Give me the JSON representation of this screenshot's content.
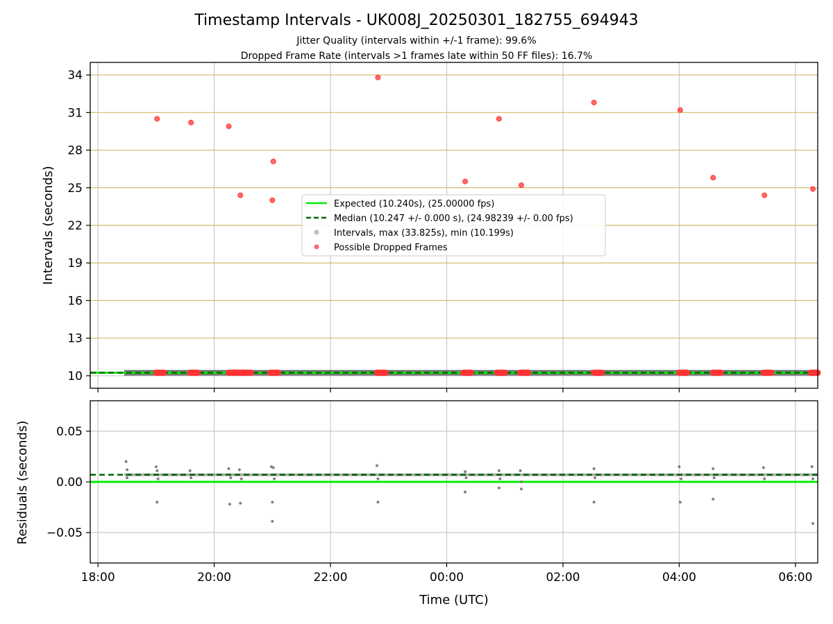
{
  "title": "Timestamp Intervals - UK008J_20250301_182755_694943",
  "subtitle_1": "Jitter Quality (intervals within +/-1 frame): 99.6%",
  "subtitle_2": "Dropped Frame Rate (intervals >1 frames late within 50 FF files): 16.7%",
  "colors": {
    "expected": "#00ee00",
    "median": "#006400",
    "intervals": "#808080",
    "dropped": "#ff3333",
    "grid": "#c8c8c8",
    "hgrid_top": "#d4b86a"
  },
  "chart_data": [
    {
      "type": "scatter",
      "ylabel": "Intervals (seconds)",
      "xlim": [
        "17:52",
        "06:23"
      ],
      "ylim": [
        9.0,
        35.0
      ],
      "yticks": [
        10,
        13,
        16,
        19,
        22,
        25,
        28,
        31,
        34
      ],
      "ytick_labels": [
        "10",
        "13",
        "16",
        "19",
        "22",
        "25",
        "28",
        "31",
        "34"
      ],
      "grid": true,
      "legend_position": "center",
      "legend": [
        {
          "label": "Expected (10.240s), (25.00000 fps)",
          "style": "solid-line",
          "color": "#00ee00"
        },
        {
          "label": "Median (10.247 +/- 0.000 s), (24.98239 +/- 0.00 fps)",
          "style": "dashed-line",
          "color": "#006400"
        },
        {
          "label": "Intervals, max (33.825s), min (10.199s)",
          "style": "dot",
          "color": "#808080"
        },
        {
          "label": "Possible Dropped Frames",
          "style": "dot",
          "color": "#ff3333"
        }
      ],
      "expected_value": 10.24,
      "median_value": 10.247,
      "interval_band": {
        "x_start": "18:27",
        "x_end": "06:23",
        "y": 10.24
      },
      "dropped_clusters": [
        {
          "x_start": "19:00",
          "x_end": "19:08"
        },
        {
          "x_start": "19:35",
          "x_end": "19:43"
        },
        {
          "x_start": "20:15",
          "x_end": "20:38"
        },
        {
          "x_start": "20:58",
          "x_end": "21:06"
        },
        {
          "x_start": "22:48",
          "x_end": "22:57"
        },
        {
          "x_start": "00:17",
          "x_end": "00:25"
        },
        {
          "x_start": "00:52",
          "x_end": "01:00"
        },
        {
          "x_start": "01:16",
          "x_end": "01:24"
        },
        {
          "x_start": "02:32",
          "x_end": "02:40"
        },
        {
          "x_start": "04:00",
          "x_end": "04:08"
        },
        {
          "x_start": "04:35",
          "x_end": "04:43"
        },
        {
          "x_start": "05:27",
          "x_end": "05:35"
        },
        {
          "x_start": "06:16",
          "x_end": "06:23"
        }
      ],
      "dropped_points": [
        {
          "x": "19:01",
          "y": 30.5
        },
        {
          "x": "19:36",
          "y": 30.2
        },
        {
          "x": "20:15",
          "y": 29.9
        },
        {
          "x": "20:27",
          "y": 24.4
        },
        {
          "x": "21:00",
          "y": 24.0
        },
        {
          "x": "21:01",
          "y": 27.1
        },
        {
          "x": "22:49",
          "y": 33.8
        },
        {
          "x": "00:19",
          "y": 25.5
        },
        {
          "x": "00:54",
          "y": 30.5
        },
        {
          "x": "01:17",
          "y": 25.2
        },
        {
          "x": "02:32",
          "y": 31.8
        },
        {
          "x": "04:01",
          "y": 31.2
        },
        {
          "x": "04:35",
          "y": 25.8
        },
        {
          "x": "05:28",
          "y": 24.4
        },
        {
          "x": "06:18",
          "y": 24.9
        }
      ]
    },
    {
      "type": "scatter",
      "xlabel": "Time (UTC)",
      "ylabel": "Residuals (seconds)",
      "xlim": [
        "17:52",
        "06:23"
      ],
      "ylim": [
        -0.08,
        0.08
      ],
      "yticks": [
        0.05,
        0.0,
        -0.05
      ],
      "ytick_labels": [
        "0.05",
        "0.00",
        "−0.05"
      ],
      "xticks": [
        "18:00",
        "20:00",
        "22:00",
        "00:00",
        "02:00",
        "04:00",
        "06:00"
      ],
      "grid": true,
      "expected_value": 0.0,
      "median_value": 0.007,
      "residual_band": {
        "x_start": "18:27",
        "x_end": "06:23",
        "y": 0.007
      },
      "residual_points": [
        {
          "x": "18:29",
          "y": 0.02
        },
        {
          "x": "18:30",
          "y": 0.012
        },
        {
          "x": "18:30",
          "y": 0.004
        },
        {
          "x": "19:00",
          "y": 0.015
        },
        {
          "x": "19:01",
          "y": 0.011
        },
        {
          "x": "19:01",
          "y": -0.02
        },
        {
          "x": "19:02",
          "y": 0.003
        },
        {
          "x": "19:35",
          "y": 0.011
        },
        {
          "x": "19:36",
          "y": 0.004
        },
        {
          "x": "20:15",
          "y": 0.013
        },
        {
          "x": "20:16",
          "y": -0.022
        },
        {
          "x": "20:17",
          "y": 0.004
        },
        {
          "x": "20:26",
          "y": 0.012
        },
        {
          "x": "20:27",
          "y": -0.021
        },
        {
          "x": "20:28",
          "y": 0.003
        },
        {
          "x": "20:59",
          "y": 0.015
        },
        {
          "x": "21:00",
          "y": -0.02
        },
        {
          "x": "21:00",
          "y": -0.039
        },
        {
          "x": "21:01",
          "y": 0.014
        },
        {
          "x": "21:02",
          "y": 0.003
        },
        {
          "x": "22:48",
          "y": 0.016
        },
        {
          "x": "22:49",
          "y": -0.02
        },
        {
          "x": "22:49",
          "y": 0.003
        },
        {
          "x": "00:19",
          "y": 0.01
        },
        {
          "x": "00:19",
          "y": -0.01
        },
        {
          "x": "00:20",
          "y": 0.004
        },
        {
          "x": "00:54",
          "y": 0.011
        },
        {
          "x": "00:54",
          "y": -0.006
        },
        {
          "x": "00:55",
          "y": 0.003
        },
        {
          "x": "01:16",
          "y": 0.011
        },
        {
          "x": "01:17",
          "y": -0.007
        },
        {
          "x": "01:17",
          "y": 0.0
        },
        {
          "x": "02:32",
          "y": 0.013
        },
        {
          "x": "02:32",
          "y": -0.02
        },
        {
          "x": "02:33",
          "y": 0.004
        },
        {
          "x": "04:00",
          "y": 0.015
        },
        {
          "x": "04:01",
          "y": -0.02
        },
        {
          "x": "04:02",
          "y": 0.003
        },
        {
          "x": "04:35",
          "y": 0.013
        },
        {
          "x": "04:35",
          "y": -0.017
        },
        {
          "x": "04:36",
          "y": 0.004
        },
        {
          "x": "05:27",
          "y": 0.014
        },
        {
          "x": "05:28",
          "y": 0.003
        },
        {
          "x": "06:17",
          "y": 0.015
        },
        {
          "x": "06:18",
          "y": -0.041
        },
        {
          "x": "06:18",
          "y": 0.003
        }
      ]
    }
  ]
}
